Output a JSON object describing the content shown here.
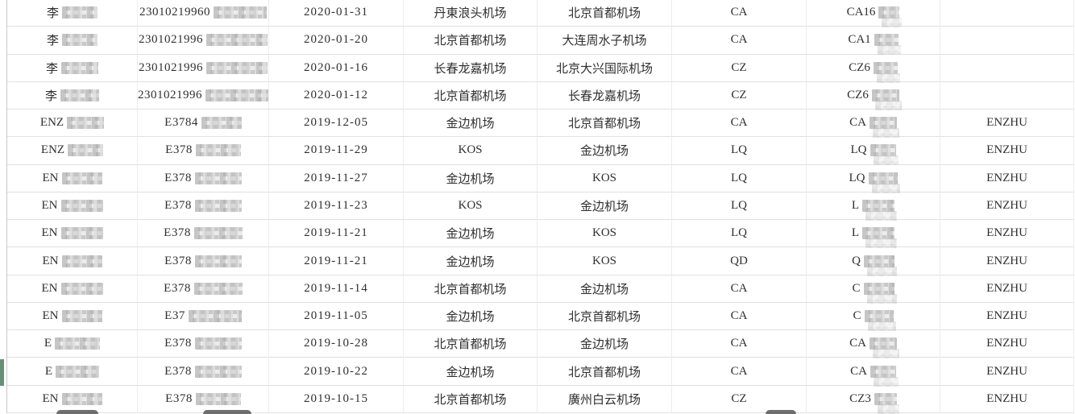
{
  "accents": {
    "selection_green": "#679078",
    "peek_dark": "#565656",
    "row_border": "#e0e0e0",
    "column_border": "#ededed",
    "left_border": "#c8c8c8",
    "text_color": "#2f2f2f"
  },
  "table": {
    "rows": [
      {
        "name": {
          "t": "李",
          "m": 44
        },
        "id": {
          "t": "23010219960",
          "m": 66
        },
        "date": "2020-01-31",
        "dep": "丹東浪头机场",
        "arr": "北京首都机场",
        "carrier": "CA",
        "flight": {
          "t": "CA16",
          "m": 26
        },
        "tag": ""
      },
      {
        "name": {
          "t": "李",
          "m": 44
        },
        "id": {
          "t": "2301021996",
          "m": 76
        },
        "date": "2020-01-20",
        "dep": "北京首都机场",
        "arr": "大连周水子机场",
        "carrier": "CA",
        "flight": {
          "t": "CA1",
          "m": 30
        },
        "tag": ""
      },
      {
        "name": {
          "t": "李",
          "m": 46
        },
        "id": {
          "t": "2301021996",
          "m": 76
        },
        "date": "2020-01-16",
        "dep": "长春龙嘉机场",
        "arr": "北京大兴国际机场",
        "carrier": "CZ",
        "flight": {
          "t": "CZ6",
          "m": 30
        },
        "tag": ""
      },
      {
        "name": {
          "t": "李",
          "m": 48
        },
        "id": {
          "t": "2301021996",
          "m": 78
        },
        "date": "2020-01-12",
        "dep": "北京首都机场",
        "arr": "长春龙嘉机场",
        "carrier": "CZ",
        "flight": {
          "t": "CZ6",
          "m": 34
        },
        "tag": ""
      },
      {
        "name": {
          "t": "ENZ",
          "m": 46
        },
        "id": {
          "t": "E3784",
          "m": 50
        },
        "date": "2019-12-05",
        "dep": "金边机场",
        "arr": "北京首都机场",
        "carrier": "CA",
        "flight": {
          "t": "CA",
          "m": 34
        },
        "tag": "ENZHU"
      },
      {
        "name": {
          "t": "ENZ",
          "m": 44
        },
        "id": {
          "t": "E378",
          "m": 56
        },
        "date": "2019-11-29",
        "dep": "KOS",
        "arr": "金边机场",
        "carrier": "LQ",
        "flight": {
          "t": "LQ",
          "m": 32
        },
        "tag": "ENZHU"
      },
      {
        "name": {
          "t": "EN",
          "m": 50
        },
        "id": {
          "t": "E378",
          "m": 58
        },
        "date": "2019-11-27",
        "dep": "金边机场",
        "arr": "KOS",
        "carrier": "LQ",
        "flight": {
          "t": "LQ",
          "m": 36
        },
        "tag": "ENZHU"
      },
      {
        "name": {
          "t": "EN",
          "m": 52
        },
        "id": {
          "t": "E378",
          "m": 58
        },
        "date": "2019-11-23",
        "dep": "KOS",
        "arr": "金边机场",
        "carrier": "LQ",
        "flight": {
          "t": "L",
          "m": 40
        },
        "tag": "ENZHU"
      },
      {
        "name": {
          "t": "EN",
          "m": 52
        },
        "id": {
          "t": "E378",
          "m": 60
        },
        "date": "2019-11-21",
        "dep": "金边机场",
        "arr": "KOS",
        "carrier": "LQ",
        "flight": {
          "t": "L",
          "m": 40
        },
        "tag": "ENZHU"
      },
      {
        "name": {
          "t": "EN",
          "m": 50
        },
        "id": {
          "t": "E378",
          "m": 58
        },
        "date": "2019-11-21",
        "dep": "金边机场",
        "arr": "KOS",
        "carrier": "QD",
        "flight": {
          "t": "Q",
          "m": 38
        },
        "tag": "ENZHU"
      },
      {
        "name": {
          "t": "EN",
          "m": 52
        },
        "id": {
          "t": "E378",
          "m": 60
        },
        "date": "2019-11-14",
        "dep": "北京首都机场",
        "arr": "金边机场",
        "carrier": "CA",
        "flight": {
          "t": "C",
          "m": 38
        },
        "tag": "ENZHU"
      },
      {
        "name": {
          "t": "EN",
          "m": 50
        },
        "id": {
          "t": "E37",
          "m": 66
        },
        "date": "2019-11-05",
        "dep": "金边机场",
        "arr": "北京首都机场",
        "carrier": "CA",
        "flight": {
          "t": "C",
          "m": 36
        },
        "tag": "ENZHU"
      },
      {
        "name": {
          "t": "E",
          "m": 56
        },
        "id": {
          "t": "E378",
          "m": 58
        },
        "date": "2019-10-28",
        "dep": "北京首都机场",
        "arr": "金边机场",
        "carrier": "CA",
        "flight": {
          "t": "CA",
          "m": 34
        },
        "tag": "ENZHU"
      },
      {
        "name": {
          "t": "E",
          "m": 54
        },
        "id": {
          "t": "E378",
          "m": 58
        },
        "date": "2019-10-22",
        "dep": "金边机场",
        "arr": "北京首都机场",
        "carrier": "CA",
        "flight": {
          "t": "CA",
          "m": 32
        },
        "tag": "ENZHU"
      },
      {
        "name": {
          "t": "EN",
          "m": 50
        },
        "id": {
          "t": "E378",
          "m": 56
        },
        "date": "2019-10-15",
        "dep": "北京首都机场",
        "arr": "廣州白云机场",
        "carrier": "CZ",
        "flight": {
          "t": "CZ3",
          "m": 28
        },
        "tag": "ENZHU"
      }
    ]
  }
}
